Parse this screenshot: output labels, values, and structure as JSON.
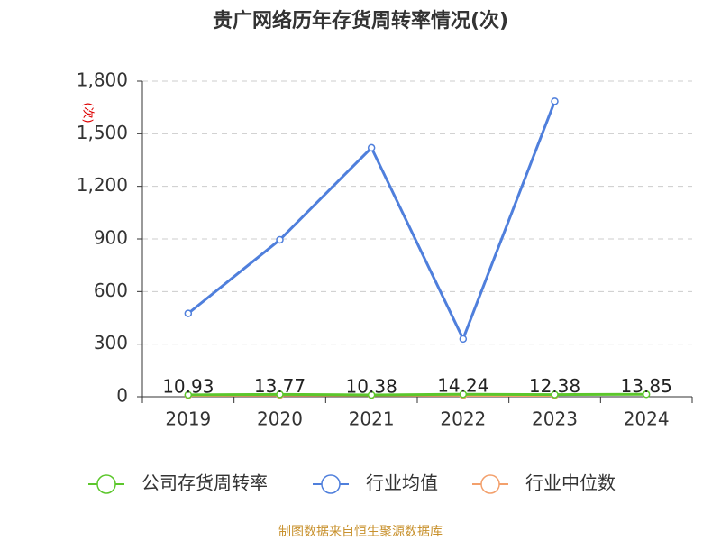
{
  "chart_data": {
    "type": "line",
    "title": "贵广网络历年存货周转率情况(次)",
    "y_label": "(次)",
    "categories": [
      "2019",
      "2020",
      "2021",
      "2022",
      "2023",
      "2024"
    ],
    "series": [
      {
        "name": "公司存货周转率",
        "color": "#5cc72c",
        "values": [
          10.93,
          13.77,
          10.38,
          14.24,
          12.38,
          13.85
        ],
        "show_labels": true
      },
      {
        "name": "行业均值",
        "color": "#4f7fdc",
        "values": [
          475,
          895,
          1420,
          330,
          1685,
          null
        ]
      },
      {
        "name": "行业中位数",
        "color": "#f3a06c",
        "values": [
          8,
          9,
          9,
          8,
          8,
          null
        ]
      }
    ],
    "ylim": [
      0,
      1800
    ],
    "yticks": [
      0,
      300,
      600,
      900,
      {
        "value": 1200,
        "label": "1,200"
      },
      {
        "value": 1500,
        "label": "1,500"
      },
      {
        "value": 1800,
        "label": "1,800"
      }
    ],
    "grid": true,
    "source": "制图数据来自恒生聚源数据库"
  }
}
